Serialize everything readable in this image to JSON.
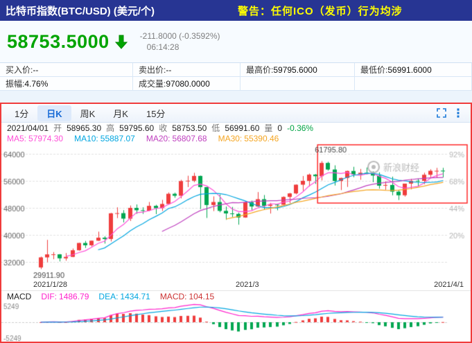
{
  "header": {
    "title": "比特币指数(BTC/USD) (美元/个)",
    "warning": "警告：任何ICO（发币）行为均涉"
  },
  "quote": {
    "price": "58753.5000",
    "price_color": "#00a400",
    "change": "-211.8000 (-0.3592%)",
    "time": "06:14:28",
    "fields": [
      {
        "label": "买入价:",
        "value": "--"
      },
      {
        "label": "卖出价:",
        "value": "--"
      },
      {
        "label": "最高价:",
        "value": "59795.6000"
      },
      {
        "label": "最低价:",
        "value": "56991.6000"
      },
      {
        "label": "振幅:",
        "value": "4.76%"
      },
      {
        "label": "成交量:",
        "value": "97080.0000"
      }
    ]
  },
  "tabs": {
    "items": [
      "1分",
      "日K",
      "周K",
      "月K",
      "15分"
    ],
    "active": "日K"
  },
  "ohlc": {
    "date": "2021/04/01",
    "items": [
      {
        "label": "开",
        "value": "58965.30"
      },
      {
        "label": "高",
        "value": "59795.60"
      },
      {
        "label": "收",
        "value": "58753.50"
      },
      {
        "label": "低",
        "value": "56991.60"
      },
      {
        "label": "量",
        "value": "0"
      }
    ],
    "pct": "-0.36%",
    "pct_color": "#00a344"
  },
  "ma_line": [
    {
      "label": "MA5:",
      "value": "57974.30",
      "color": "#ff4fd8"
    },
    {
      "label": "MA10:",
      "value": "55887.07",
      "color": "#00a6e0"
    },
    {
      "label": "MA20:",
      "value": "56807.68",
      "color": "#bf40bf"
    },
    {
      "label": "MA30:",
      "value": "55390.46",
      "color": "#f5a623"
    }
  ],
  "watermark": "新浪财经",
  "macd": {
    "scale": 5249,
    "y_top": "5249",
    "y_bottom": "-5249",
    "items": [
      {
        "label": "MACD",
        "value": "",
        "color": "#222222"
      },
      {
        "label": "DIF:",
        "value": "1486.79",
        "color": "#ff22cc"
      },
      {
        "label": "DEA:",
        "value": "1434.71",
        "color": "#00a6e0"
      },
      {
        "label": "MACD:",
        "value": "104.15",
        "color": "#cc3333"
      }
    ]
  },
  "chart_data": {
    "type": "candlestick",
    "x_labels": [
      "2021/1/28",
      "2021/3",
      "2021/4/1"
    ],
    "y_ticks": [
      64000,
      56000,
      48000,
      40000,
      32000
    ],
    "right_ticks": [
      "92%",
      "68%",
      "44%",
      "20%"
    ],
    "ylim": [
      26500,
      67000
    ],
    "up_color": "#ef3d3d",
    "down_color": "#00a651",
    "ma_periods": [
      5,
      10,
      20,
      30
    ],
    "annotations": {
      "high": "61795.80",
      "low": "29911.90"
    },
    "highlight": {
      "from_index": 44,
      "top_price": 66600,
      "bottom_price": 49400
    },
    "candles": [
      [
        30400,
        33600,
        29911.9,
        33364
      ],
      [
        33364,
        38531,
        31915,
        34252
      ],
      [
        34252,
        34933,
        32825,
        34262
      ],
      [
        34262,
        34342,
        32171,
        33092
      ],
      [
        33092,
        34638,
        32384,
        33514
      ],
      [
        33514,
        35984,
        33418,
        35466
      ],
      [
        35466,
        37662,
        35362,
        37618
      ],
      [
        37618,
        38225,
        36161,
        36936
      ],
      [
        36936,
        38310,
        36570,
        38290
      ],
      [
        38290,
        40955,
        38215,
        39186
      ],
      [
        39186,
        39621,
        37446,
        38795
      ],
      [
        38795,
        46503,
        38076,
        46374
      ],
      [
        46374,
        48142,
        44961,
        46420
      ],
      [
        46420,
        47310,
        43691,
        44807
      ],
      [
        44807,
        48678,
        44096,
        47969
      ],
      [
        47969,
        48985,
        46221,
        47287
      ],
      [
        47287,
        48150,
        46202,
        47153
      ],
      [
        47153,
        49707,
        47014,
        48577
      ],
      [
        48577,
        48895,
        46134,
        47911
      ],
      [
        47911,
        50341,
        47060,
        49133
      ],
      [
        49133,
        52533,
        49004,
        52140
      ],
      [
        52140,
        52474,
        50962,
        51552
      ],
      [
        51552,
        56273,
        50781,
        55887
      ],
      [
        55887,
        57462,
        54123,
        55997
      ],
      [
        55997,
        58330,
        55538,
        57408
      ],
      [
        57408,
        57508,
        47622,
        54104
      ],
      [
        54104,
        54184,
        45000,
        48824
      ],
      [
        48824,
        51369,
        47027,
        49705
      ],
      [
        49705,
        51948,
        46674,
        47093
      ],
      [
        47093,
        48370,
        44454,
        46339
      ],
      [
        46339,
        48253,
        45269,
        46188
      ],
      [
        46188,
        46576,
        43016,
        45137
      ],
      [
        45137,
        49784,
        45050,
        49631
      ],
      [
        49631,
        50127,
        47228,
        48378
      ],
      [
        48378,
        52640,
        48189,
        50538
      ],
      [
        50538,
        51773,
        47500,
        48561
      ],
      [
        48561,
        49448,
        46300,
        48927
      ],
      [
        48927,
        49147,
        47257,
        48912
      ],
      [
        48912,
        51384,
        48882,
        51206
      ],
      [
        51206,
        52402,
        49328,
        52246
      ],
      [
        52246,
        54895,
        51981,
        54824
      ],
      [
        54824,
        57387,
        53005,
        55963
      ],
      [
        55963,
        58113,
        54272,
        57805
      ],
      [
        57805,
        57996,
        55047,
        57332
      ],
      [
        57332,
        61795.8,
        56078,
        61243
      ],
      [
        61243,
        61597,
        58966,
        59302
      ],
      [
        59302,
        60540,
        54568,
        55907
      ],
      [
        55907,
        56900,
        53221,
        56804
      ],
      [
        56804,
        58974,
        54160,
        58870
      ],
      [
        58870,
        60100,
        57020,
        57858
      ],
      [
        57858,
        59468,
        56270,
        58346
      ],
      [
        58346,
        59880,
        57844,
        58313
      ],
      [
        58313,
        58767,
        55567,
        57523
      ],
      [
        57523,
        58471,
        53657,
        54529
      ],
      [
        54529,
        55839,
        53321,
        54738
      ],
      [
        54738,
        57200,
        51686,
        52774
      ],
      [
        52774,
        53268,
        50305,
        51704
      ],
      [
        51704,
        55137,
        51300,
        55137
      ],
      [
        55137,
        56568,
        53451,
        55973
      ],
      [
        55973,
        56610,
        54242,
        55950
      ],
      [
        55950,
        58342,
        54972,
        57750
      ],
      [
        57750,
        59368,
        57020,
        58917
      ],
      [
        58917,
        59788,
        56769,
        58918
      ],
      [
        58965.3,
        59795.6,
        56991.6,
        58753.5
      ]
    ]
  }
}
